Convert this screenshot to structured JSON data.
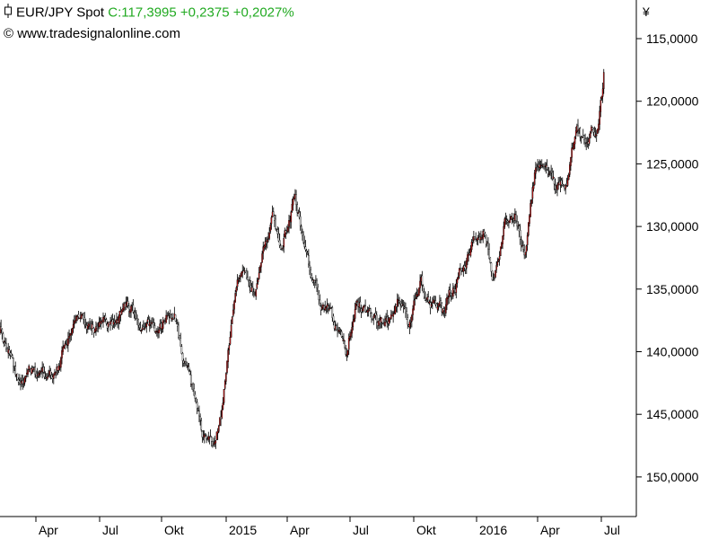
{
  "header": {
    "symbol": "EUR/JPY Spot",
    "quote": "C:117,3995 +0,2375 +0,2027%",
    "source": "© www.tradesignalonline.com"
  },
  "colors": {
    "up_candle": "#c81e1e",
    "down_candle": "#ffffff",
    "outline": "#000000",
    "quote_text": "#22aa22",
    "axis": "#000000"
  },
  "icons": {
    "chart_type": "candlestick-icon"
  },
  "chart_data": {
    "type": "candlestick",
    "title": "EUR/JPY Spot",
    "currency_symbol": "¥",
    "y_axis": {
      "inverted": true,
      "min": 147.0,
      "max": 115.0,
      "side": "right",
      "ticks": [
        "115,0000",
        "120,0000",
        "125,0000",
        "130,0000",
        "135,0000",
        "140,0000",
        "145,0000",
        "150,0000"
      ]
    },
    "x_axis": {
      "ticks": [
        "Apr",
        "Jul",
        "Okt",
        "2015",
        "Apr",
        "Jul",
        "Okt",
        "2016",
        "Apr",
        "Jul"
      ]
    },
    "grid": false,
    "close_path": [
      [
        "2014-01-01",
        138.5
      ],
      [
        "2014-01-15",
        140.5
      ],
      [
        "2014-02-01",
        142.0
      ],
      [
        "2014-02-15",
        141.0
      ],
      [
        "2014-03-01",
        141.5
      ],
      [
        "2014-03-15",
        141.8
      ],
      [
        "2014-04-01",
        141.0
      ],
      [
        "2014-04-15",
        139.5
      ],
      [
        "2014-05-01",
        138.0
      ],
      [
        "2014-05-15",
        138.5
      ],
      [
        "2014-06-01",
        138.0
      ],
      [
        "2014-06-15",
        137.0
      ],
      [
        "2014-07-01",
        137.5
      ],
      [
        "2014-07-15",
        136.5
      ],
      [
        "2014-08-01",
        137.0
      ],
      [
        "2014-08-15",
        137.5
      ],
      [
        "2014-09-01",
        138.5
      ],
      [
        "2014-09-15",
        137.5
      ],
      [
        "2014-10-01",
        136.0
      ],
      [
        "2014-10-15",
        140.0
      ],
      [
        "2014-11-01",
        143.5
      ],
      [
        "2014-11-15",
        147.0
      ],
      [
        "2014-12-01",
        147.5
      ],
      [
        "2014-12-15",
        145.0
      ],
      [
        "2015-01-01",
        138.0
      ],
      [
        "2015-01-15",
        134.0
      ],
      [
        "2015-02-01",
        135.5
      ],
      [
        "2015-02-15",
        132.5
      ],
      [
        "2015-03-01",
        130.0
      ],
      [
        "2015-03-15",
        131.5
      ],
      [
        "2015-04-01",
        128.0
      ],
      [
        "2015-04-15",
        130.5
      ],
      [
        "2015-05-01",
        134.5
      ],
      [
        "2015-05-15",
        136.0
      ],
      [
        "2015-06-01",
        138.5
      ],
      [
        "2015-06-15",
        140.5
      ],
      [
        "2015-07-01",
        135.0
      ],
      [
        "2015-07-15",
        136.5
      ],
      [
        "2015-08-01",
        137.5
      ],
      [
        "2015-08-15",
        137.0
      ],
      [
        "2015-09-01",
        135.0
      ],
      [
        "2015-09-15",
        138.0
      ],
      [
        "2015-10-01",
        134.5
      ],
      [
        "2015-10-15",
        136.0
      ],
      [
        "2015-11-01",
        137.0
      ],
      [
        "2015-11-15",
        135.0
      ],
      [
        "2015-12-01",
        133.0
      ],
      [
        "2015-12-15",
        131.5
      ],
      [
        "2016-01-01",
        130.0
      ],
      [
        "2016-01-15",
        133.5
      ],
      [
        "2016-02-01",
        129.0
      ],
      [
        "2016-02-15",
        128.0
      ],
      [
        "2016-03-01",
        132.0
      ],
      [
        "2016-03-15",
        126.0
      ],
      [
        "2016-04-01",
        124.0
      ],
      [
        "2016-04-15",
        126.5
      ],
      [
        "2016-05-01",
        127.0
      ],
      [
        "2016-05-15",
        122.5
      ],
      [
        "2016-06-01",
        123.5
      ],
      [
        "2016-06-15",
        122.0
      ],
      [
        "2016-06-22",
        119.0
      ],
      [
        "2016-06-24",
        117.4
      ]
    ]
  }
}
